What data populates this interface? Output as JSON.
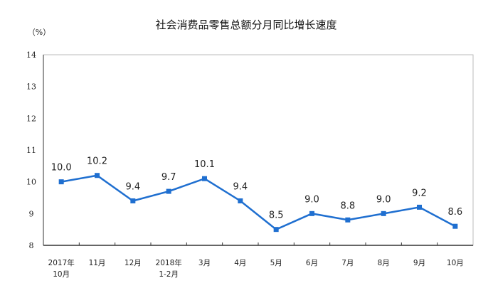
{
  "chart_data": {
    "type": "line",
    "title": "社会消费品零售总额分月同比增长速度",
    "ylabel": "（%）",
    "xlabel": "",
    "ylim": [
      8,
      14
    ],
    "yticks": [
      "8",
      "9",
      "10",
      "11",
      "12",
      "13",
      "14"
    ],
    "categories": [
      [
        "2017年",
        "10月"
      ],
      [
        "11月"
      ],
      [
        "12月"
      ],
      [
        "2018年",
        "1-2月"
      ],
      [
        "3月"
      ],
      [
        "4月"
      ],
      [
        "5月"
      ],
      [
        "6月"
      ],
      [
        "7月"
      ],
      [
        "8月"
      ],
      [
        "9月"
      ],
      [
        "10月"
      ]
    ],
    "values": [
      10.0,
      10.2,
      9.4,
      9.7,
      10.1,
      9.4,
      8.5,
      9.0,
      8.8,
      9.0,
      9.2,
      8.6
    ],
    "labels": [
      "10.0",
      "10.2",
      "9.4",
      "9.7",
      "10.1",
      "9.4",
      "8.5",
      "9.0",
      "8.8",
      "9.0",
      "9.2",
      "8.6"
    ],
    "grid": false,
    "legend": "none",
    "color": "#1f6fd0"
  }
}
